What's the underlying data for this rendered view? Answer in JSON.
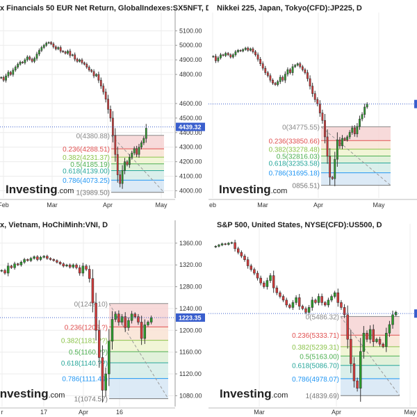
{
  "colors": {
    "up": "#2ca02c",
    "down": "#d93b3b",
    "current_line": "#3a5fcd",
    "price_tag_bg": "#3a5fcd",
    "fib_colors": [
      "#888888",
      "#e05050",
      "#8bc34a",
      "#4caf50",
      "#26a69a",
      "#2196f3",
      "#777777"
    ],
    "fib_fills": [
      "#f6d3d3",
      "#f9e3d3",
      "#eef3cf",
      "#dcefd3",
      "#d3ece8",
      "#d6e6f5",
      "#e4e4e4"
    ]
  },
  "watermark": {
    "brand": "Investing",
    "suffix": ".com"
  },
  "chart_data": [
    {
      "type": "candlestick",
      "title": "x Financials 50 EUR Net Return, GlobalIndexes:SX5NFT, D",
      "x_ticks": [
        "Feb",
        "Mar",
        "Apr",
        "May"
      ],
      "y_ticks": [
        "5100.00",
        "5000.00",
        "4900.00",
        "4800.00",
        "4600.00",
        "4500.00",
        "4400.00",
        "4300.00",
        "4200.00",
        "4100.00",
        "4000.00"
      ],
      "y_tick_values": [
        5100,
        5000,
        4900,
        4800,
        4600,
        4500,
        4400,
        4300,
        4200,
        4100,
        4000
      ],
      "ylim": [
        3950,
        5130
      ],
      "current_price": "4439.32",
      "current_value": 4439.32,
      "fib_levels": [
        {
          "label": "0(4380.88)",
          "value": 4380.88
        },
        {
          "label": "0.236(4288.51)",
          "value": 4288.51
        },
        {
          "label": "0.382(4231.37)",
          "value": 4231.37
        },
        {
          "label": "0.5(4185.19)",
          "value": 4185.19
        },
        {
          "label": "0.618(4139.00)",
          "value": 4139.0
        },
        {
          "label": "0.786(4073.25)",
          "value": 4073.25
        },
        {
          "label": "1(3989.50)",
          "value": 3989.5
        }
      ],
      "series_closes": [
        4780,
        4760,
        4790,
        4815,
        4800,
        4830,
        4850,
        4870,
        4885,
        4880,
        4900,
        4920,
        4905,
        4890,
        4910,
        4940,
        4965,
        4985,
        5000,
        5015,
        5020,
        5010,
        4990,
        4975,
        4985,
        4960,
        4955,
        4945,
        4960,
        4930,
        4935,
        4905,
        4890,
        4900,
        4880,
        4870,
        4850,
        4830,
        4820,
        4790,
        4800,
        4760,
        4720,
        4680,
        4630,
        4560,
        4500,
        4380,
        4250,
        4110,
        4050,
        4140,
        4200,
        4180,
        4230,
        4260,
        4290,
        4250,
        4300,
        4330,
        4360,
        4430
      ]
    },
    {
      "type": "candlestick",
      "title": "Nikkei 225, Japan, Tokyo(CFD):JP225, D",
      "x_ticks": [
        "eb",
        "Mar",
        "Apr",
        "May"
      ],
      "y_ticks": [],
      "y_tick_values": [],
      "ylim": [
        30000,
        41500
      ],
      "current_price": "",
      "current_value": 36300,
      "fib_levels": [
        {
          "label": "0(34775.55)",
          "value": 34775.55
        },
        {
          "label": "0.236(33850.66)",
          "value": 33850.66
        },
        {
          "label": "0.382(33278.48)",
          "value": 33278.48
        },
        {
          "label": "0.5(32816.03)",
          "value": 32816.03
        },
        {
          "label": "0.618(32353.58)",
          "value": 32353.58
        },
        {
          "label": "0.786(31695.18)",
          "value": 31695.18
        },
        {
          "label": "0856.51)",
          "value": 30856.51
        }
      ],
      "series_closes": [
        39500,
        39200,
        39400,
        39600,
        39550,
        39700,
        39600,
        39450,
        39600,
        39800,
        39900,
        39850,
        39950,
        40050,
        39900,
        40000,
        39800,
        39600,
        39300,
        39000,
        38700,
        38400,
        38200,
        37900,
        37700,
        37600,
        37800,
        38100,
        37900,
        38300,
        38600,
        38400,
        38800,
        38900,
        39000,
        38800,
        38600,
        38400,
        38000,
        37500,
        37000,
        36600,
        36300,
        35700,
        35200,
        34100,
        32800,
        31400,
        31300,
        32600,
        33900,
        33500,
        34000,
        33900,
        34100,
        34400,
        34700,
        34300,
        34800,
        35300,
        35600,
        36100,
        36300
      ]
    },
    {
      "type": "candlestick",
      "title": "x, Vietnam, HoChiMinh:VNI, D",
      "x_ticks": [
        "r",
        "17",
        "Apr",
        "16"
      ],
      "y_ticks": [
        "1360.00",
        "1320.00",
        "1280.00",
        "1240.00",
        "1200.00",
        "1160.00",
        "1120.00",
        "1080.00"
      ],
      "y_tick_values": [
        1360,
        1320,
        1280,
        1240,
        1200,
        1160,
        1120,
        1080
      ],
      "ylim": [
        1060,
        1370
      ],
      "current_price": "1223.35",
      "current_value": 1223.35,
      "fib_levels": [
        {
          "label": "0(124?.10)",
          "value": 1249.1
        },
        {
          "label": "0.236(1206.?)",
          "value": 1206.25
        },
        {
          "label": "0.382(1181.??)",
          "value": 1181.75
        },
        {
          "label": "0.5(1160.??)",
          "value": 1160.85
        },
        {
          "label": "0.618(1140.??)",
          "value": 1140.35
        },
        {
          "label": "0.786(1111.49)",
          "value": 1111.49
        },
        {
          "label": "1(1074.57)",
          "value": 1074.57
        }
      ],
      "series_closes": [
        1310,
        1305,
        1318,
        1315,
        1322,
        1320,
        1325,
        1330,
        1328,
        1332,
        1335,
        1330,
        1334,
        1336,
        1332,
        1330,
        1328,
        1325,
        1322,
        1318,
        1320,
        1316,
        1320,
        1315,
        1305,
        1318,
        1312,
        1295,
        1250,
        1200,
        1150,
        1090,
        1120,
        1180,
        1220,
        1230,
        1215,
        1225,
        1205,
        1218,
        1230,
        1225,
        1215,
        1185,
        1210,
        1215,
        1223
      ]
    },
    {
      "type": "candlestick",
      "title": "S&P 500, United States, NYSE(CFD):US500, D",
      "x_ticks": [
        "Mar",
        "Apr",
        "May"
      ],
      "y_ticks": [],
      "y_tick_values": [],
      "ylim": [
        4750,
        6130
      ],
      "current_price": "",
      "current_value": 5510,
      "fib_levels": [
        {
          "label": "0(5486.32)",
          "value": 5486.32
        },
        {
          "label": "0.236(5333.71)",
          "value": 5333.71
        },
        {
          "label": "0.382(5239.31)",
          "value": 5239.31
        },
        {
          "label": "0.5(5163.00)",
          "value": 5163.0
        },
        {
          "label": "0.618(5086.70)",
          "value": 5086.7
        },
        {
          "label": "0.786(4978.07)",
          "value": 4978.07
        },
        {
          "label": "1(4839.69)",
          "value": 4839.69
        }
      ],
      "series_closes": [
        6060,
        6070,
        6080,
        6075,
        6085,
        6090,
        6040,
        6010,
        5980,
        5950,
        5900,
        5870,
        5840,
        5800,
        5760,
        5730,
        5780,
        5820,
        5720,
        5680,
        5650,
        5620,
        5580,
        5560,
        5600,
        5640,
        5570,
        5550,
        5520,
        5560,
        5620,
        5600,
        5650,
        5600,
        5580,
        5620,
        5650,
        5680,
        5600,
        5560,
        5500,
        5300,
        5100,
        4960,
        4900,
        5200,
        5350,
        5300,
        5380,
        5280,
        5300,
        5260,
        5240,
        5350,
        5420,
        5500,
        5520
      ]
    }
  ]
}
